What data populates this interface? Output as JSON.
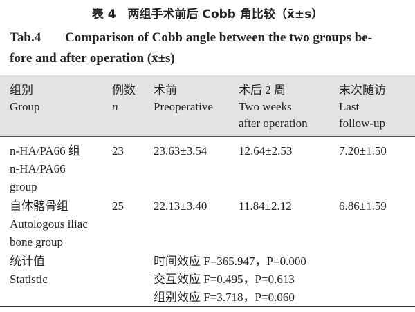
{
  "caption": {
    "cn": "表 4　两组手术前后 Cobb 角比较（x̄±s）",
    "en_label": "Tab.4",
    "en_lines": [
      "Comparison of Cobb angle between the two groups be-",
      "fore and after operation (x̄±s)"
    ]
  },
  "table": {
    "header": [
      [
        "组别",
        "Group"
      ],
      [
        "例数",
        "n"
      ],
      [
        "术前",
        "Preoperative"
      ],
      [
        "术后 2 周",
        "Two weeks",
        "after operation"
      ],
      [
        "末次随访",
        "Last",
        "follow-up"
      ]
    ],
    "rows": [
      [
        [
          "n-HA/PA66 组",
          "n-HA/PA66",
          "group"
        ],
        [
          "23"
        ],
        [
          "23.63±3.54"
        ],
        [
          "12.64±2.53"
        ],
        [
          "7.20±1.50"
        ]
      ],
      [
        [
          "自体髂骨组",
          "Autologous iliac",
          "bone group"
        ],
        [
          "25"
        ],
        [
          "22.13±3.40"
        ],
        [
          "11.84±2.12"
        ],
        [
          "6.86±1.59"
        ]
      ]
    ],
    "statistic": {
      "label": [
        "统计值",
        "Statistic"
      ],
      "lines": [
        "时间效应 F=365.947，P=0.000",
        "交互效应 F=0.495，P=0.613",
        "组别效应 F=3.718，P=0.060"
      ]
    }
  }
}
